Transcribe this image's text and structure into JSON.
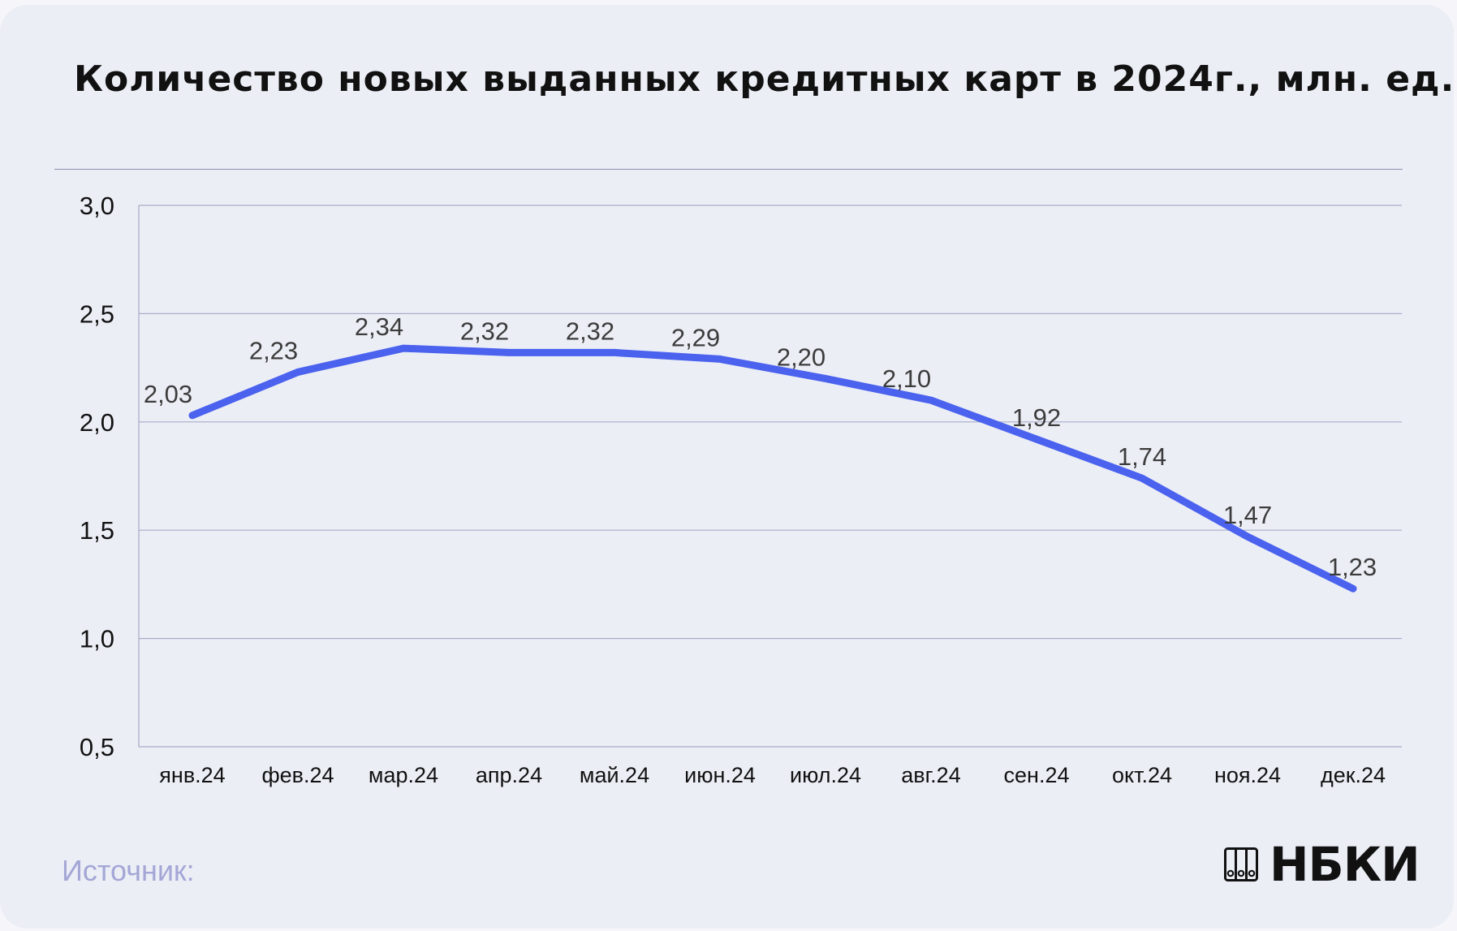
{
  "chart_data": {
    "type": "line",
    "title": "Количество новых выданных кредитных карт в 2024г., млн. ед.",
    "categories": [
      "янв.24",
      "фев.24",
      "мар.24",
      "апр.24",
      "май.24",
      "июн.24",
      "июл.24",
      "авг.24",
      "сен.24",
      "окт.24",
      "ноя.24",
      "дек.24"
    ],
    "values": [
      2.03,
      2.23,
      2.34,
      2.32,
      2.32,
      2.29,
      2.2,
      2.1,
      1.92,
      1.74,
      1.47,
      1.23
    ],
    "data_labels": [
      "2,03",
      "2,23",
      "2,34",
      "2,32",
      "2,32",
      "2,29",
      "2,20",
      "2,10",
      "1,92",
      "1,74",
      "1,47",
      "1,23"
    ],
    "ylim": [
      0.5,
      3.0
    ],
    "yticks": [
      0.5,
      1.0,
      1.5,
      2.0,
      2.5,
      3.0
    ],
    "ytick_labels": [
      "0,5",
      "1,0",
      "1,5",
      "2,0",
      "2,5",
      "3,0"
    ],
    "xlabel": "",
    "ylabel": "",
    "grid": true,
    "line_color": "#4a62ee"
  },
  "footer": {
    "source_label": "Источник:",
    "logo_text": "НБКИ"
  }
}
